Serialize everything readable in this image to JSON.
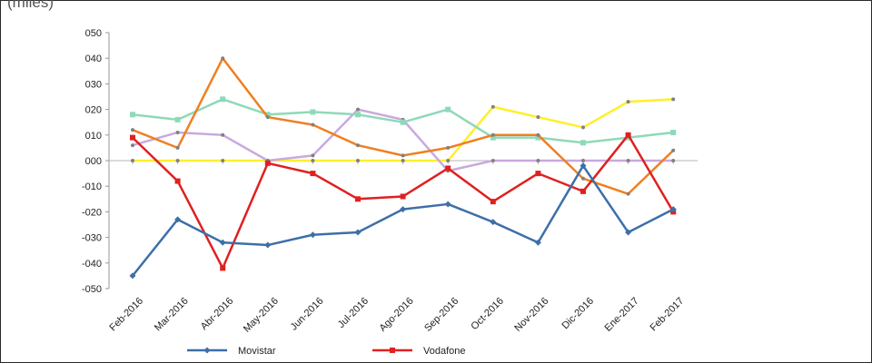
{
  "unit_label": "(miles)",
  "chart_data": {
    "type": "line",
    "title": "",
    "xlabel": "",
    "ylabel": "(miles)",
    "ylim": [
      -50,
      50
    ],
    "y_ticks": [
      "050",
      "040",
      "030",
      "020",
      "010",
      "000",
      "-010",
      "-020",
      "-030",
      "-040",
      "-050"
    ],
    "x": [
      "Feb-2016",
      "Mar-2016",
      "Abr-2016",
      "May-2016",
      "Jun-2016",
      "Jul-2016",
      "Ago-2016",
      "Sep-2016",
      "Oct-2016",
      "Nov-2016",
      "Dic-2016",
      "Ene-2017",
      "Feb-2017"
    ],
    "grid": false,
    "legend_position": "bottom",
    "series": [
      {
        "name": "Movistar",
        "color": "#3d6fa8",
        "marker": "diamond",
        "in_legend": true,
        "values": [
          -45,
          -23,
          -32,
          -33,
          -29,
          -28,
          -19,
          -17,
          -24,
          -32,
          -2,
          -28,
          -19
        ]
      },
      {
        "name": "Vodafone",
        "color": "#e02020",
        "marker": "square",
        "in_legend": true,
        "values": [
          9,
          -8,
          -42,
          -1,
          -5,
          -15,
          -14,
          -3,
          -16,
          -5,
          -12,
          10,
          -20
        ]
      },
      {
        "color": "#f07f20",
        "marker": "dot",
        "in_legend": false,
        "values": [
          12,
          5,
          40,
          17,
          14,
          6,
          2,
          5,
          10,
          10,
          -7,
          -13,
          4
        ]
      },
      {
        "color": "#8fd9b8",
        "marker": "square",
        "in_legend": false,
        "values": [
          18,
          16,
          24,
          18,
          19,
          18,
          15,
          20,
          9,
          9,
          7,
          9,
          11
        ]
      },
      {
        "color": "#c9a9e0",
        "marker": "dot",
        "in_legend": false,
        "values": [
          6,
          11,
          10,
          0,
          2,
          20,
          16,
          -4,
          0,
          0,
          0,
          0,
          0
        ]
      },
      {
        "color": "#ffef2a",
        "marker": "dot",
        "in_legend": false,
        "values": [
          0,
          0,
          0,
          0,
          0,
          0,
          0,
          0,
          21,
          17,
          13,
          23,
          24
        ]
      }
    ]
  }
}
